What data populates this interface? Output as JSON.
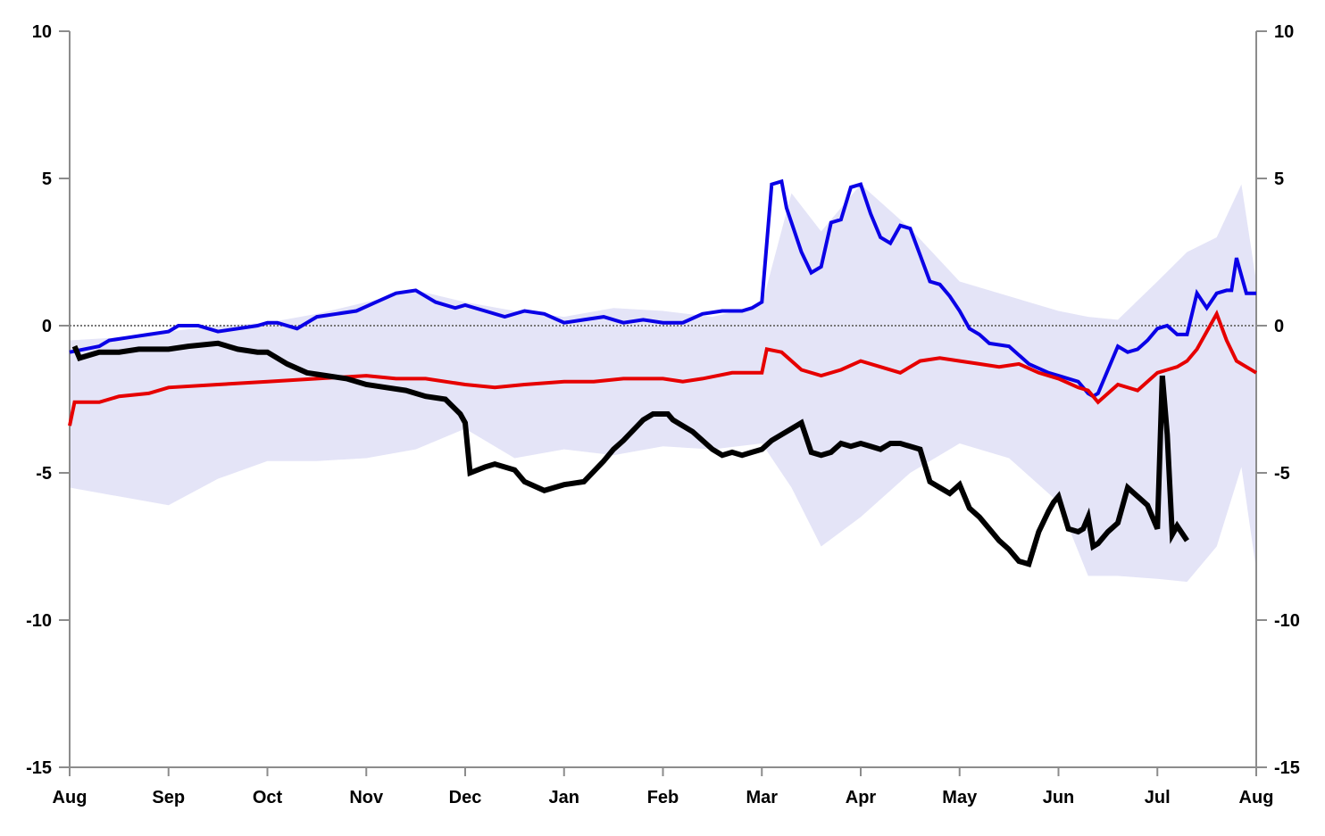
{
  "chart_data": {
    "type": "line",
    "title": "",
    "xlabel": "",
    "ylabel": "",
    "x_ticks": [
      "Aug",
      "Sep",
      "Oct",
      "Nov",
      "Dec",
      "Jan",
      "Feb",
      "Mar",
      "Apr",
      "May",
      "Jun",
      "Jul",
      "Aug"
    ],
    "y_ticks": [
      10,
      5,
      0,
      -5,
      -10,
      -15
    ],
    "ylim": [
      -15,
      10
    ],
    "xlim_months": [
      0,
      12
    ],
    "right_axis_mirrors_left": true,
    "zero_line": "dotted",
    "grid": false,
    "legend": "none",
    "band": {
      "color": "#e4e4f7",
      "x": [
        0.0,
        0.5,
        1.0,
        1.5,
        2.0,
        2.5,
        3.0,
        3.5,
        4.0,
        4.5,
        5.0,
        5.5,
        6.0,
        6.5,
        7.0,
        7.3,
        7.6,
        8.0,
        8.5,
        9.0,
        9.5,
        10.0,
        10.3,
        10.6,
        11.0,
        11.3,
        11.6,
        11.85,
        12.0
      ],
      "upper": [
        -0.5,
        -0.4,
        -0.2,
        0.0,
        0.1,
        0.4,
        0.8,
        1.2,
        0.8,
        0.5,
        0.3,
        0.6,
        0.5,
        0.3,
        0.7,
        4.5,
        3.2,
        4.8,
        3.3,
        1.5,
        1.0,
        0.5,
        0.3,
        0.2,
        1.5,
        2.5,
        3.0,
        4.8,
        1.5
      ],
      "lower": [
        -5.5,
        -5.8,
        -6.1,
        -5.2,
        -4.6,
        -4.6,
        -4.5,
        -4.2,
        -3.5,
        -4.5,
        -4.2,
        -4.4,
        -4.1,
        -4.2,
        -4.0,
        -5.5,
        -7.5,
        -6.5,
        -5.0,
        -4.0,
        -4.5,
        -6.0,
        -8.5,
        -8.5,
        -8.6,
        -8.7,
        -7.5,
        -4.8,
        -8.3
      ]
    },
    "series": [
      {
        "color": "#0a00e6",
        "width": 4,
        "x": [
          0.0,
          0.3,
          0.4,
          0.6,
          0.8,
          1.0,
          1.1,
          1.3,
          1.5,
          1.7,
          1.9,
          2.0,
          2.1,
          2.3,
          2.5,
          2.7,
          2.9,
          3.1,
          3.3,
          3.5,
          3.7,
          3.9,
          4.0,
          4.2,
          4.4,
          4.6,
          4.8,
          5.0,
          5.2,
          5.4,
          5.6,
          5.8,
          6.0,
          6.2,
          6.4,
          6.6,
          6.8,
          6.9,
          7.0,
          7.1,
          7.2,
          7.25,
          7.3,
          7.4,
          7.5,
          7.6,
          7.7,
          7.8,
          7.9,
          8.0,
          8.1,
          8.2,
          8.3,
          8.4,
          8.5,
          8.6,
          8.7,
          8.8,
          8.9,
          9.0,
          9.1,
          9.2,
          9.3,
          9.5,
          9.7,
          9.9,
          10.0,
          10.1,
          10.2,
          10.3,
          10.35,
          10.4,
          10.5,
          10.6,
          10.7,
          10.8,
          10.9,
          11.0,
          11.1,
          11.2,
          11.3,
          11.4,
          11.5,
          11.6,
          11.7,
          11.75,
          11.8,
          11.9,
          12.0
        ],
        "y": [
          -0.9,
          -0.7,
          -0.5,
          -0.4,
          -0.3,
          -0.2,
          0.0,
          0.0,
          -0.2,
          -0.1,
          0.0,
          0.1,
          0.1,
          -0.1,
          0.3,
          0.4,
          0.5,
          0.8,
          1.1,
          1.2,
          0.8,
          0.6,
          0.7,
          0.5,
          0.3,
          0.5,
          0.4,
          0.1,
          0.2,
          0.3,
          0.1,
          0.2,
          0.1,
          0.1,
          0.4,
          0.5,
          0.5,
          0.6,
          0.8,
          4.8,
          4.9,
          4.0,
          3.5,
          2.5,
          1.8,
          2.0,
          3.5,
          3.6,
          4.7,
          4.8,
          3.8,
          3.0,
          2.8,
          3.4,
          3.3,
          2.4,
          1.5,
          1.4,
          1.0,
          0.5,
          -0.1,
          -0.3,
          -0.6,
          -0.7,
          -1.3,
          -1.6,
          -1.7,
          -1.8,
          -1.9,
          -2.3,
          -2.4,
          -2.3,
          -1.5,
          -0.7,
          -0.9,
          -0.8,
          -0.5,
          -0.1,
          0.0,
          -0.3,
          -0.3,
          1.1,
          0.6,
          1.1,
          1.2,
          1.2,
          2.3,
          1.1,
          1.1
        ]
      },
      {
        "color": "#e60000",
        "width": 4,
        "x": [
          0.0,
          0.05,
          0.3,
          0.5,
          0.8,
          1.0,
          1.5,
          2.0,
          2.5,
          3.0,
          3.3,
          3.6,
          4.0,
          4.3,
          4.6,
          5.0,
          5.3,
          5.6,
          6.0,
          6.2,
          6.4,
          6.7,
          7.0,
          7.05,
          7.2,
          7.4,
          7.6,
          7.8,
          8.0,
          8.2,
          8.4,
          8.6,
          8.8,
          9.0,
          9.2,
          9.4,
          9.6,
          9.8,
          10.0,
          10.2,
          10.3,
          10.4,
          10.5,
          10.6,
          10.8,
          11.0,
          11.1,
          11.2,
          11.3,
          11.4,
          11.5,
          11.6,
          11.7,
          11.8,
          11.9,
          12.0
        ],
        "y": [
          -3.4,
          -2.6,
          -2.6,
          -2.4,
          -2.3,
          -2.1,
          -2.0,
          -1.9,
          -1.8,
          -1.7,
          -1.8,
          -1.8,
          -2.0,
          -2.1,
          -2.0,
          -1.9,
          -1.9,
          -1.8,
          -1.8,
          -1.9,
          -1.8,
          -1.6,
          -1.6,
          -0.8,
          -0.9,
          -1.5,
          -1.7,
          -1.5,
          -1.2,
          -1.4,
          -1.6,
          -1.2,
          -1.1,
          -1.2,
          -1.3,
          -1.4,
          -1.3,
          -1.6,
          -1.8,
          -2.1,
          -2.2,
          -2.6,
          -2.3,
          -2.0,
          -2.2,
          -1.6,
          -1.5,
          -1.4,
          -1.2,
          -0.8,
          -0.2,
          0.4,
          -0.5,
          -1.2,
          -1.4,
          -1.6
        ]
      },
      {
        "color": "#000000",
        "width": 6,
        "x": [
          0.05,
          0.1,
          0.3,
          0.5,
          0.7,
          1.0,
          1.2,
          1.5,
          1.7,
          1.9,
          2.0,
          2.2,
          2.4,
          2.6,
          2.8,
          3.0,
          3.2,
          3.4,
          3.6,
          3.8,
          3.95,
          4.0,
          4.05,
          4.2,
          4.3,
          4.5,
          4.6,
          4.8,
          5.0,
          5.2,
          5.4,
          5.5,
          5.6,
          5.8,
          5.9,
          6.0,
          6.05,
          6.1,
          6.3,
          6.5,
          6.6,
          6.7,
          6.8,
          6.9,
          7.0,
          7.1,
          7.2,
          7.25,
          7.3,
          7.4,
          7.5,
          7.6,
          7.7,
          7.8,
          7.9,
          8.0,
          8.1,
          8.2,
          8.3,
          8.4,
          8.5,
          8.6,
          8.7,
          8.8,
          8.9,
          9.0,
          9.1,
          9.2,
          9.3,
          9.4,
          9.5,
          9.6,
          9.7,
          9.8,
          9.9,
          9.95,
          10.0,
          10.1,
          10.2,
          10.25,
          10.3,
          10.35,
          10.4,
          10.5,
          10.6,
          10.65,
          10.7,
          10.8,
          10.9,
          10.95,
          11.0,
          11.05,
          11.1,
          11.15,
          11.2,
          11.3
        ],
        "y": [
          -0.7,
          -1.1,
          -0.9,
          -0.9,
          -0.8,
          -0.8,
          -0.7,
          -0.6,
          -0.8,
          -0.9,
          -0.9,
          -1.3,
          -1.6,
          -1.7,
          -1.8,
          -2.0,
          -2.1,
          -2.2,
          -2.4,
          -2.5,
          -3.0,
          -3.3,
          -5.0,
          -4.8,
          -4.7,
          -4.9,
          -5.3,
          -5.6,
          -5.4,
          -5.3,
          -4.6,
          -4.2,
          -3.9,
          -3.2,
          -3.0,
          -3.0,
          -3.0,
          -3.2,
          -3.6,
          -4.2,
          -4.4,
          -4.3,
          -4.4,
          -4.3,
          -4.2,
          -3.9,
          -3.7,
          -3.6,
          -3.5,
          -3.3,
          -4.3,
          -4.4,
          -4.3,
          -4.0,
          -4.1,
          -4.0,
          -4.1,
          -4.2,
          -4.0,
          -4.0,
          -4.1,
          -4.2,
          -5.3,
          -5.5,
          -5.7,
          -5.4,
          -6.2,
          -6.5,
          -6.9,
          -7.3,
          -7.6,
          -8.0,
          -8.1,
          -7.0,
          -6.3,
          -6.0,
          -5.8,
          -6.9,
          -7.0,
          -6.9,
          -6.5,
          -7.5,
          -7.4,
          -7.0,
          -6.7,
          -6.1,
          -5.5,
          -5.8,
          -6.1,
          -6.5,
          -6.9,
          -1.7,
          -3.7,
          -7.1,
          -6.8,
          -7.3
        ]
      }
    ]
  }
}
